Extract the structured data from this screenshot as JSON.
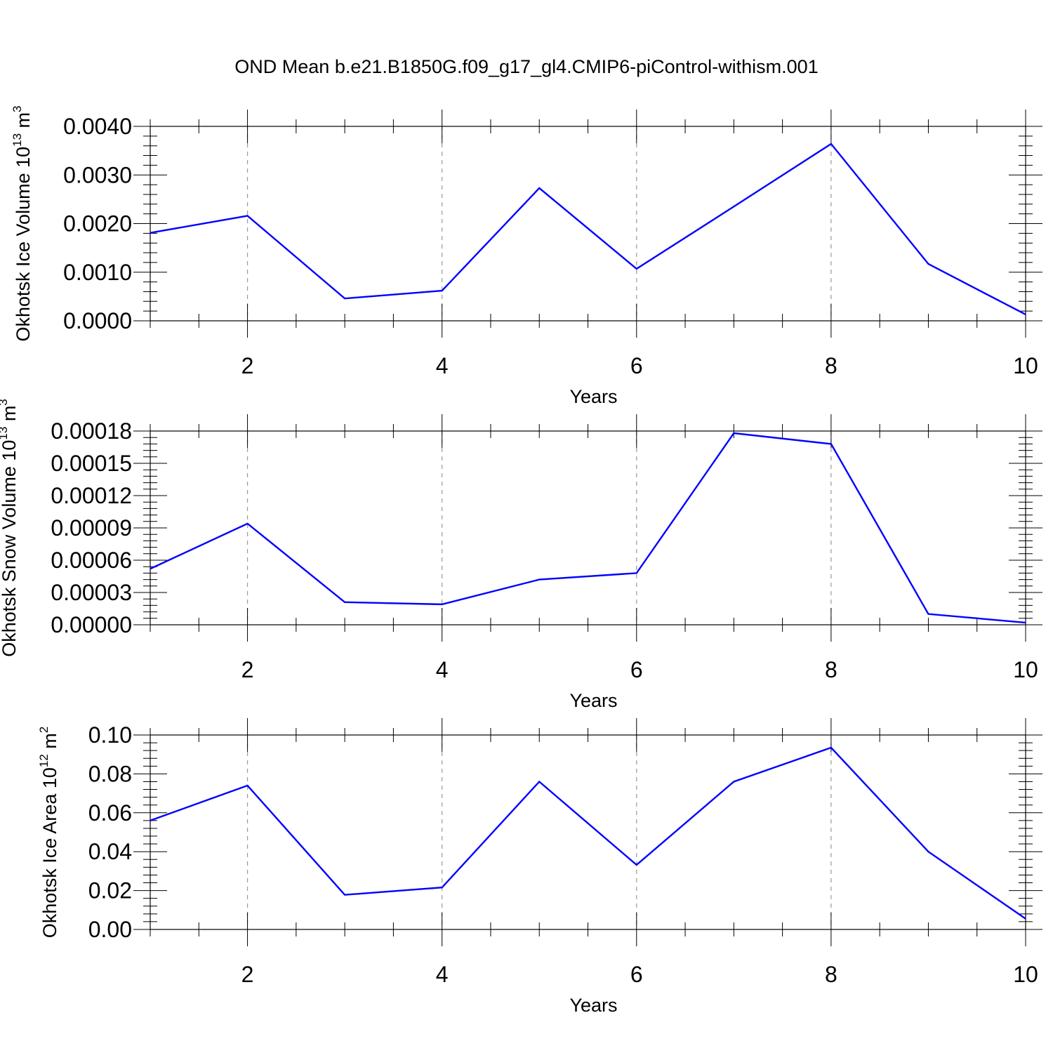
{
  "title": "OND Mean b.e21.B1850G.f09_g17_gl4.CMIP6-piControl-withism.001",
  "colors": {
    "series": "#0000ff",
    "grid": "#999999"
  },
  "chart_data": [
    {
      "type": "line",
      "ylabel_text": "Okhotsk Ice Volume 10",
      "ylabel_exp": "13",
      "ylabel_unit": "m",
      "ylabel_unit_exp": "3",
      "xlabel": "Years",
      "xlim": [
        1,
        10
      ],
      "ylim": [
        0,
        0.004
      ],
      "x_ticks": [
        2,
        4,
        6,
        8,
        10
      ],
      "x_tick_labels": [
        "2",
        "4",
        "6",
        "8",
        "10"
      ],
      "y_ticks": [
        0,
        0.001,
        0.002,
        0.003,
        0.004
      ],
      "y_tick_labels": [
        "0.0000",
        "0.0010",
        "0.0020",
        "0.0030",
        "0.0040"
      ],
      "grid": "vertical-dashed",
      "x": [
        1,
        2,
        3,
        4,
        5,
        6,
        7,
        8,
        9,
        10
      ],
      "values": [
        0.00181,
        0.00216,
        0.00046,
        0.00062,
        0.00273,
        0.00107,
        0.00235,
        0.00364,
        0.00117,
        0.00013
      ]
    },
    {
      "type": "line",
      "ylabel_text": "Okhotsk Snow Volume 10",
      "ylabel_exp": "13",
      "ylabel_unit": "m",
      "ylabel_unit_exp": "3",
      "xlabel": "Years",
      "xlim": [
        1,
        10
      ],
      "ylim": [
        0,
        0.00018
      ],
      "x_ticks": [
        2,
        4,
        6,
        8,
        10
      ],
      "x_tick_labels": [
        "2",
        "4",
        "6",
        "8",
        "10"
      ],
      "y_ticks": [
        0,
        3e-05,
        6e-05,
        9e-05,
        0.00012,
        0.00015,
        0.00018
      ],
      "y_tick_labels": [
        "0.00000",
        "0.00003",
        "0.00006",
        "0.00009",
        "0.00012",
        "0.00015",
        "0.00018"
      ],
      "grid": "vertical-dashed",
      "x": [
        1,
        2,
        3,
        4,
        5,
        6,
        7,
        8,
        9,
        10
      ],
      "values": [
        5.2e-05,
        9.4e-05,
        2.1e-05,
        1.9e-05,
        4.2e-05,
        4.8e-05,
        0.000178,
        0.000168,
        1e-05,
        2e-06
      ]
    },
    {
      "type": "line",
      "ylabel_text": "Okhotsk Ice Area 10",
      "ylabel_exp": "12",
      "ylabel_unit": "m",
      "ylabel_unit_exp": "2",
      "xlabel": "Years",
      "xlim": [
        1,
        10
      ],
      "ylim": [
        0,
        0.1
      ],
      "x_ticks": [
        2,
        4,
        6,
        8,
        10
      ],
      "x_tick_labels": [
        "2",
        "4",
        "6",
        "8",
        "10"
      ],
      "y_ticks": [
        0,
        0.02,
        0.04,
        0.06,
        0.08,
        0.1
      ],
      "y_tick_labels": [
        "0.00",
        "0.02",
        "0.04",
        "0.06",
        "0.08",
        "0.10"
      ],
      "grid": "vertical-dashed",
      "x": [
        1,
        2,
        3,
        4,
        5,
        6,
        7,
        8,
        9,
        10
      ],
      "values": [
        0.056,
        0.074,
        0.0178,
        0.0216,
        0.076,
        0.0332,
        0.076,
        0.0935,
        0.04,
        0.0055
      ]
    }
  ]
}
